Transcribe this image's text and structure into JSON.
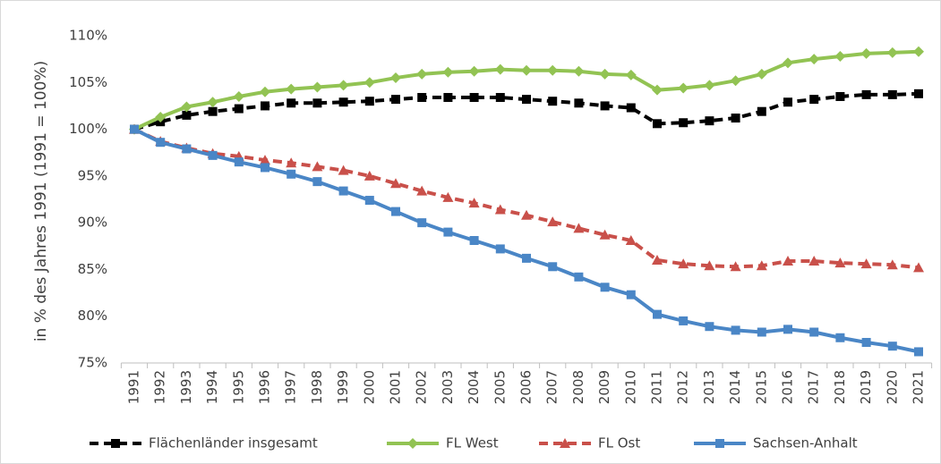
{
  "chart_data": {
    "type": "line",
    "y_label": "in % des Jahres 1991 (1991 = 100%)",
    "categories": [
      "1991",
      "1992",
      "1993",
      "1994",
      "1995",
      "1996",
      "1997",
      "1998",
      "1999",
      "2000",
      "2001",
      "2002",
      "2003",
      "2004",
      "2005",
      "2006",
      "2007",
      "2008",
      "2009",
      "2010",
      "2011",
      "2012",
      "2013",
      "2014",
      "2015",
      "2016",
      "2017",
      "2018",
      "2019",
      "2020",
      "2021"
    ],
    "ylim": [
      75,
      110
    ],
    "yticks": [
      {
        "value": 75,
        "label": "75%"
      },
      {
        "value": 80,
        "label": "80%"
      },
      {
        "value": 85,
        "label": "85%"
      },
      {
        "value": 90,
        "label": "90%"
      },
      {
        "value": 95,
        "label": "95%"
      },
      {
        "value": 100,
        "label": "100%"
      },
      {
        "value": 105,
        "label": "105%"
      },
      {
        "value": 110,
        "label": "110%"
      }
    ],
    "grid": false,
    "legend": "bottom",
    "series": [
      {
        "name": "Flächenländer insgesamt",
        "color": "#000000",
        "dash": true,
        "marker": "square",
        "values": [
          100,
          100.8,
          101.5,
          101.9,
          102.2,
          102.5,
          102.8,
          102.8,
          102.9,
          103.0,
          103.2,
          103.4,
          103.4,
          103.4,
          103.4,
          103.2,
          103.0,
          102.8,
          102.5,
          102.3,
          100.6,
          100.7,
          100.9,
          101.2,
          101.9,
          102.9,
          103.2,
          103.5,
          103.7,
          103.7,
          103.8
        ]
      },
      {
        "name": "FL West",
        "color": "#92c353",
        "dash": false,
        "marker": "diamond",
        "values": [
          100,
          101.3,
          102.4,
          102.9,
          103.5,
          104.0,
          104.3,
          104.5,
          104.7,
          105.0,
          105.5,
          105.9,
          106.1,
          106.2,
          106.4,
          106.3,
          106.3,
          106.2,
          105.9,
          105.8,
          104.2,
          104.4,
          104.7,
          105.2,
          105.9,
          107.1,
          107.5,
          107.8,
          108.1,
          108.2,
          108.3
        ]
      },
      {
        "name": "FL Ost",
        "color": "#c9504a",
        "dash": true,
        "marker": "triangle",
        "values": [
          100,
          98.7,
          98.0,
          97.4,
          97.1,
          96.7,
          96.4,
          96.0,
          95.6,
          95.0,
          94.2,
          93.4,
          92.7,
          92.1,
          91.4,
          90.8,
          90.1,
          89.4,
          88.7,
          88.1,
          86.0,
          85.6,
          85.4,
          85.3,
          85.4,
          85.9,
          85.9,
          85.7,
          85.6,
          85.5,
          85.2
        ]
      },
      {
        "name": "Sachsen-Anhalt",
        "color": "#4a86c6",
        "dash": false,
        "marker": "square",
        "values": [
          100,
          98.6,
          97.9,
          97.2,
          96.5,
          95.9,
          95.2,
          94.4,
          93.4,
          92.4,
          91.2,
          90.0,
          89.0,
          88.1,
          87.2,
          86.2,
          85.3,
          84.2,
          83.1,
          82.3,
          80.2,
          79.5,
          78.9,
          78.5,
          78.3,
          78.6,
          78.3,
          77.7,
          77.2,
          76.8,
          76.2
        ]
      }
    ]
  }
}
